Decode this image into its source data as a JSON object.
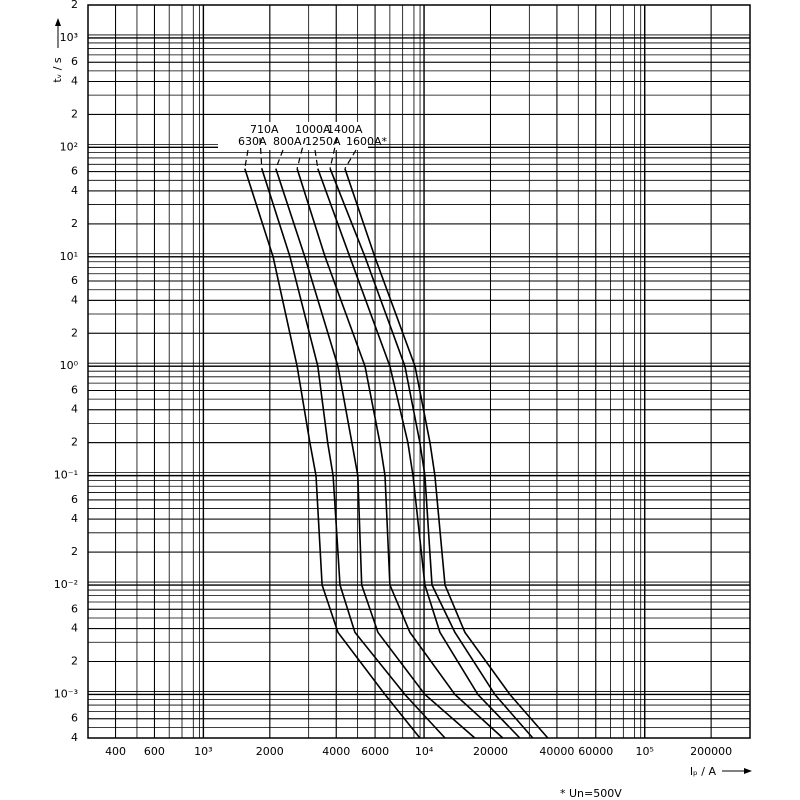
{
  "chart_data": {
    "type": "line",
    "log_x": true,
    "log_y": true,
    "grid": true,
    "minor_grid": true,
    "y_label": "tᵥ / s",
    "x_label": "Iₚ / A",
    "note": "* Un=500V",
    "xlim": [
      300,
      300000
    ],
    "ylim": [
      0.0004,
      2000
    ],
    "xticks": [
      400,
      600,
      {
        "value": 1000,
        "label": "10³"
      },
      2000,
      4000,
      6000,
      {
        "value": 10000,
        "label": "10⁴"
      },
      20000,
      40000,
      60000,
      {
        "value": 100000,
        "label": "10⁵"
      },
      200000
    ],
    "yticks": [
      {
        "value": 2000,
        "label": "2"
      },
      {
        "value": 1000,
        "label": "10³"
      },
      {
        "value": 600,
        "label": "6"
      },
      {
        "value": 400,
        "label": "4"
      },
      {
        "value": 200,
        "label": "2"
      },
      {
        "value": 100,
        "label": "10²"
      },
      {
        "value": 60,
        "label": "6"
      },
      {
        "value": 40,
        "label": "4"
      },
      {
        "value": 20,
        "label": "2"
      },
      {
        "value": 10,
        "label": "10¹"
      },
      6,
      4,
      2,
      {
        "value": 1,
        "label": "10⁰"
      },
      {
        "value": 0.6,
        "label": "6"
      },
      {
        "value": 0.4,
        "label": "4"
      },
      {
        "value": 0.2,
        "label": "2"
      },
      {
        "value": 0.1,
        "label": "10⁻¹"
      },
      {
        "value": 0.06,
        "label": "6"
      },
      {
        "value": 0.04,
        "label": "4"
      },
      {
        "value": 0.02,
        "label": "2"
      },
      {
        "value": 0.01,
        "label": "10⁻²"
      },
      {
        "value": 0.006,
        "label": "6"
      },
      {
        "value": 0.004,
        "label": "4"
      },
      {
        "value": 0.002,
        "label": "2"
      },
      {
        "value": 0.001,
        "label": "10⁻³"
      },
      {
        "value": 0.0006,
        "label": "6"
      },
      {
        "value": 0.0004,
        "label": "4"
      }
    ],
    "series": [
      {
        "name": "630A",
        "color": "#000000",
        "x": [
          1540,
          2070,
          2660,
          3040,
          3240,
          3450,
          4070,
          6650,
          9580
        ],
        "values": [
          64,
          10,
          1,
          0.2,
          0.1,
          0.01,
          0.0037,
          0.001,
          0.0004
        ]
      },
      {
        "name": "710A",
        "color": "#000000",
        "x": [
          1840,
          2470,
          3300,
          3660,
          3870,
          4160,
          4860,
          8190,
          12450
        ],
        "values": [
          64,
          10,
          1,
          0.2,
          0.1,
          0.01,
          0.0037,
          0.001,
          0.0004
        ]
      },
      {
        "name": "800A",
        "color": "#000000",
        "x": [
          2130,
          2880,
          4070,
          4710,
          5010,
          5220,
          6180,
          10090,
          16980
        ],
        "values": [
          64,
          10,
          1,
          0.2,
          0.1,
          0.01,
          0.0037,
          0.001,
          0.0004
        ]
      },
      {
        "name": "1000A",
        "color": "#000000",
        "x": [
          2660,
          3560,
          5400,
          6310,
          6650,
          7000,
          8630,
          13800,
          22750
        ],
        "values": [
          64,
          10,
          1,
          0.2,
          0.1,
          0.01,
          0.0037,
          0.001,
          0.0004
        ]
      },
      {
        "name": "1250A",
        "color": "#000000",
        "x": [
          3300,
          4610,
          7000,
          8450,
          8910,
          10090,
          11800,
          17540,
          27160
        ],
        "values": [
          64,
          10,
          1,
          0.2,
          0.1,
          0.01,
          0.0037,
          0.001,
          0.0004
        ]
      },
      {
        "name": "1400A",
        "color": "#000000",
        "x": [
          3750,
          5400,
          8190,
          9580,
          10090,
          10860,
          13800,
          20940,
          31120
        ],
        "values": [
          64,
          10,
          1,
          0.2,
          0.1,
          0.01,
          0.0037,
          0.001,
          0.0004
        ]
      },
      {
        "name": "1600A*",
        "color": "#000000",
        "x": [
          4380,
          5980,
          9100,
          10640,
          11200,
          12450,
          15310,
          24490,
          36390
        ],
        "values": [
          64,
          10,
          1,
          0.2,
          0.1,
          0.01,
          0.0037,
          0.001,
          0.0004
        ]
      }
    ]
  }
}
